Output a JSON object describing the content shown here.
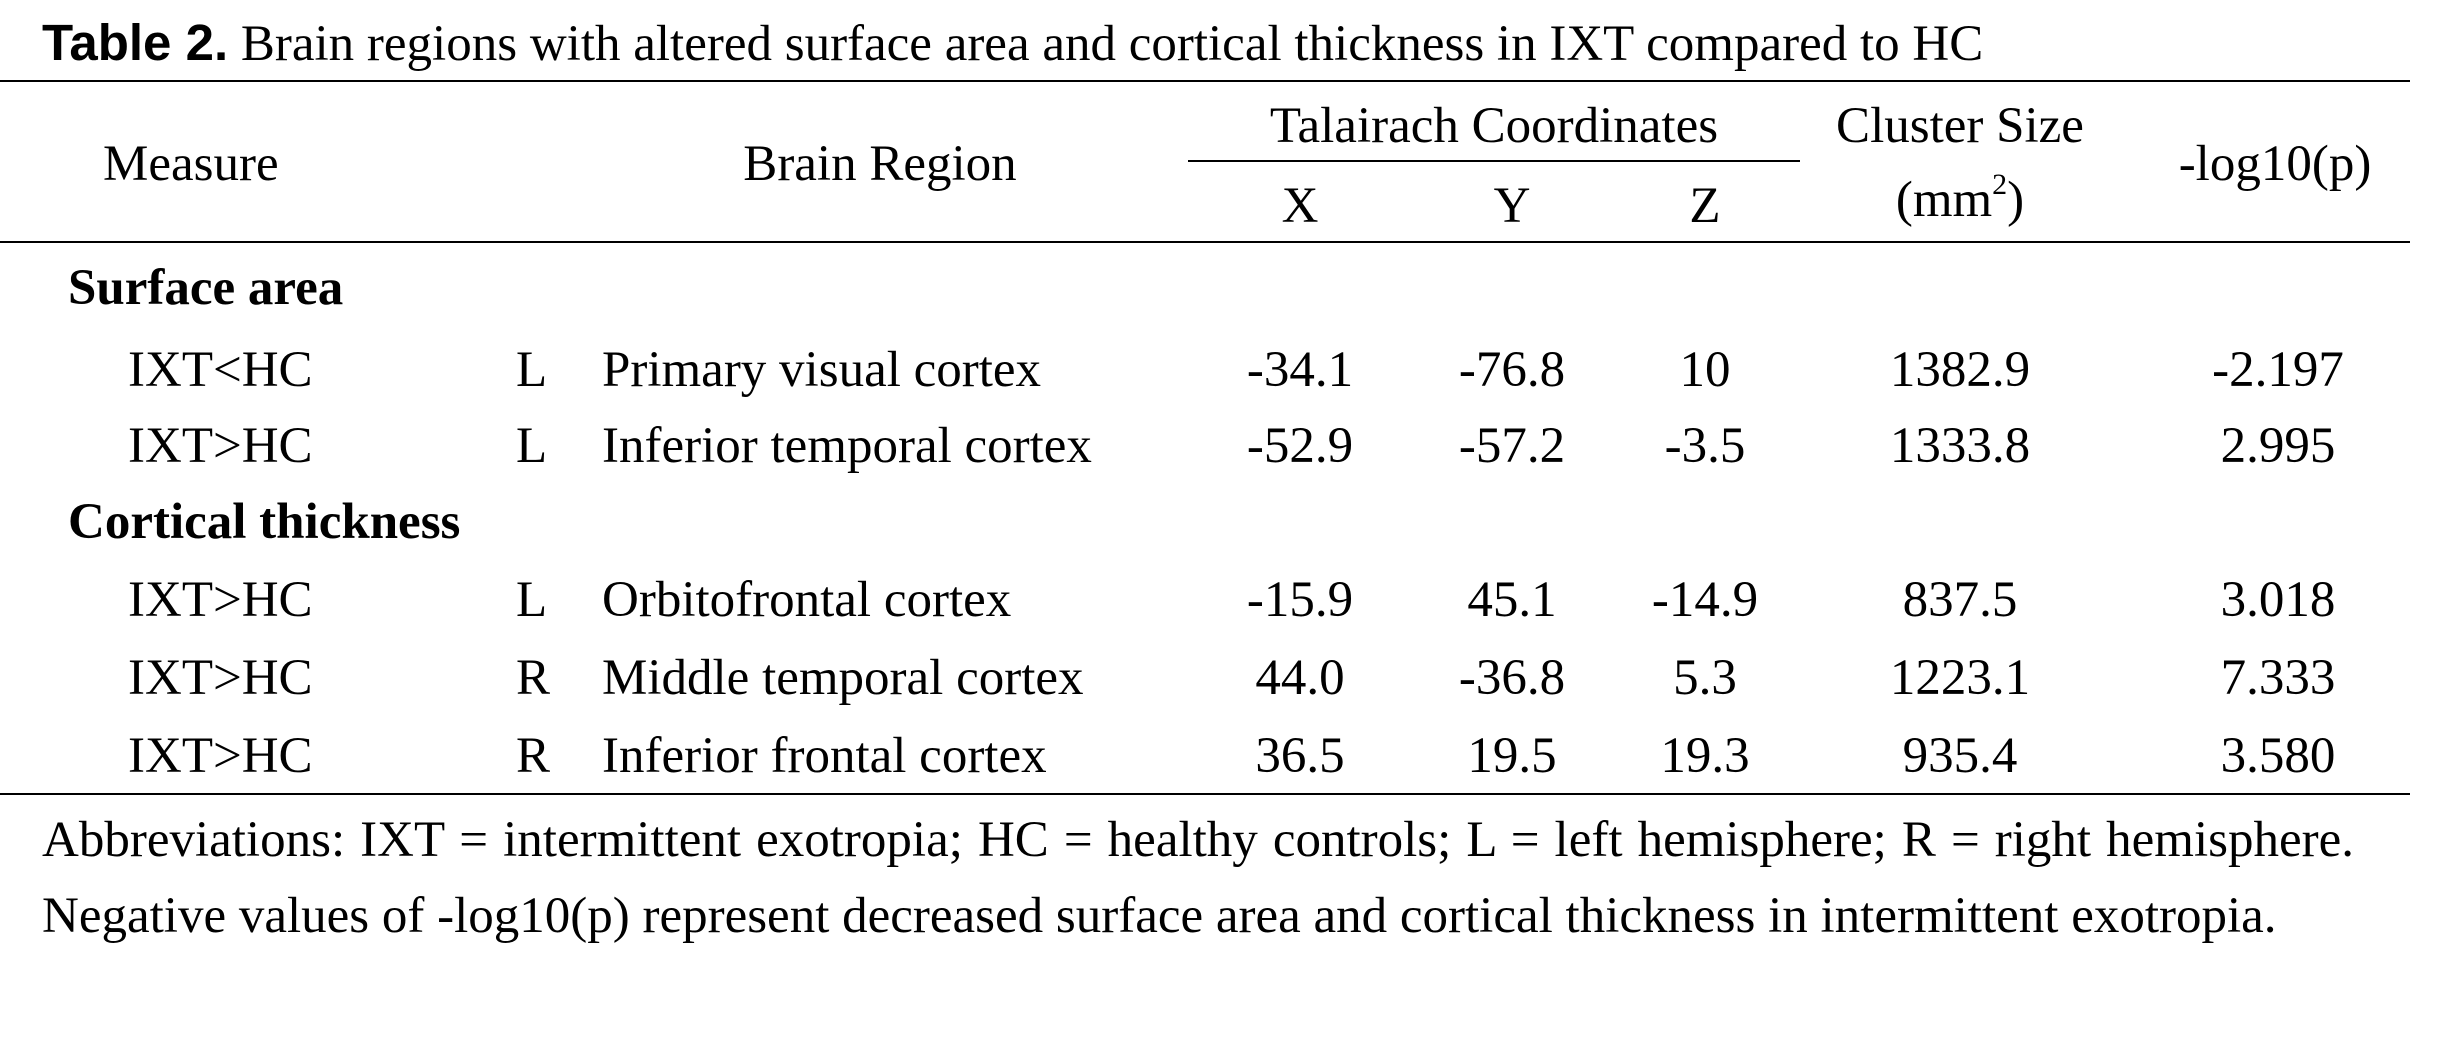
{
  "caption": {
    "label": "Table 2.",
    "text": "Brain regions with altered surface area and cortical thickness in IXT compared to HC"
  },
  "header": {
    "measure": "Measure",
    "brain_region": "Brain Region",
    "talairach": "Talairach Coordinates",
    "x": "X",
    "y": "Y",
    "z": "Z",
    "cluster_size_line1": "Cluster Size",
    "cluster_size_unit": "(mm",
    "cluster_size_sup": "2",
    "cluster_size_close": ")",
    "log_p": "-log10(p)"
  },
  "sections": [
    {
      "title": "Surface area",
      "rows": [
        {
          "measure": "IXT<HC",
          "hemi": "L",
          "region": "Primary visual cortex",
          "x": "-34.1",
          "y": "-76.8",
          "z": "10",
          "size": "1382.9",
          "logp": "-2.197"
        },
        {
          "measure": "IXT>HC",
          "hemi": "L",
          "region": "Inferior temporal cortex",
          "x": "-52.9",
          "y": "-57.2",
          "z": "-3.5",
          "size": "1333.8",
          "logp": "2.995"
        }
      ]
    },
    {
      "title": "Cortical thickness",
      "rows": [
        {
          "measure": "IXT>HC",
          "hemi": "L",
          "region": "Orbitofrontal cortex",
          "x": "-15.9",
          "y": "45.1",
          "z": "-14.9",
          "size": "837.5",
          "logp": "3.018"
        },
        {
          "measure": "IXT>HC",
          "hemi": "R",
          "region": "Middle temporal cortex",
          "x": "44.0",
          "y": "-36.8",
          "z": "5.3",
          "size": "1223.1",
          "logp": "7.333"
        },
        {
          "measure": "IXT>HC",
          "hemi": "R",
          "region": "Inferior frontal cortex",
          "x": "36.5",
          "y": "19.5",
          "z": "19.3",
          "size": "935.4",
          "logp": "3.580"
        }
      ]
    }
  ],
  "footnote": "Abbreviations: IXT = intermittent exotropia; HC = healthy controls; L = left hemisphere; R = right hemisphere. Negative values of -log10(p) represent decreased surface area and cortical thickness in intermittent exotropia."
}
